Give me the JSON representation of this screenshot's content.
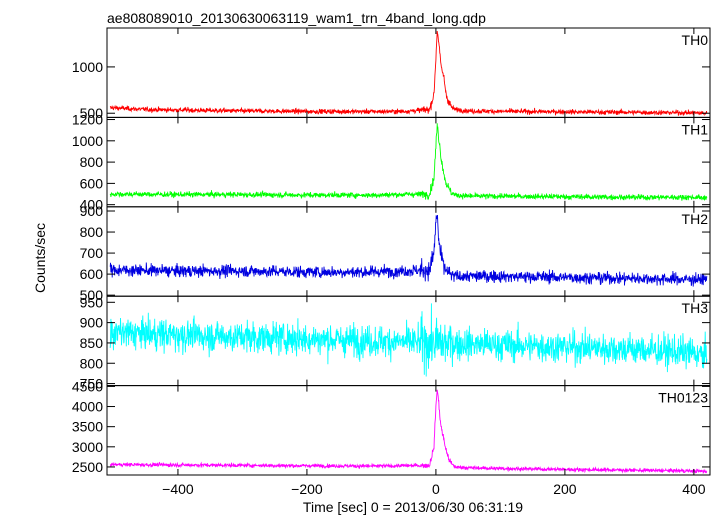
{
  "chart_data": {
    "type": "line",
    "title": "ae808089010_20130630063119_wam1_trn_4band_long.qdp",
    "xlabel": "Time [sec] 0 = 2013/06/30 06:31:19",
    "ylabel": "Counts/sec",
    "xlim": [
      -510,
      425
    ],
    "x_ticks": [
      -400,
      -200,
      0,
      200,
      400
    ],
    "x_tick_labels": [
      "−400",
      "−200",
      "0",
      "200",
      "400"
    ],
    "panels": [
      {
        "name": "TH0",
        "color": "#ff0000",
        "ylim": [
          455,
          1420
        ],
        "y_ticks": [
          500,
          1000
        ],
        "y_tick_labels": [
          "500",
          "1000"
        ],
        "series": [
          {
            "x": [
              -505,
              -450,
              -400,
              -300,
              -200,
              -100,
              -50,
              -10,
              -3,
              0,
              2,
              4,
              6,
              8,
              12,
              16,
              20,
              25,
              30,
              50,
              100,
              200,
              300,
              400,
              420
            ],
            "y": [
              560,
              540,
              535,
              525,
              520,
              518,
              520,
              540,
              700,
              1100,
              1400,
              1300,
              1150,
              1000,
              900,
              700,
              620,
              560,
              540,
              525,
              520,
              515,
              510,
              505,
              500
            ],
            "noise": 25
          }
        ]
      },
      {
        "name": "TH1",
        "color": "#00ff00",
        "ylim": [
          380,
          1220
        ],
        "y_ticks": [
          400,
          600,
          800,
          1000,
          1200
        ],
        "y_tick_labels": [
          "400",
          "600",
          "800",
          "1000",
          "1200"
        ],
        "series": [
          {
            "x": [
              -505,
              -400,
              -300,
              -200,
              -100,
              -10,
              -3,
              0,
              2,
              4,
              6,
              8,
              12,
              16,
              20,
              25,
              30,
              50,
              100,
              200,
              300,
              400,
              420
            ],
            "y": [
              500,
              495,
              495,
              490,
              490,
              500,
              650,
              950,
              1150,
              1050,
              950,
              850,
              700,
              600,
              550,
              510,
              490,
              480,
              480,
              475,
              470,
              470,
              465
            ],
            "noise": 25
          }
        ]
      },
      {
        "name": "TH2",
        "color": "#0000e0",
        "ylim": [
          495,
          920
        ],
        "y_ticks": [
          500,
          600,
          700,
          800,
          900
        ],
        "y_tick_labels": [
          "500",
          "600",
          "700",
          "800",
          "900"
        ],
        "series": [
          {
            "x": [
              -505,
              -400,
              -300,
              -200,
              -100,
              -10,
              -3,
              0,
              2,
              4,
              6,
              8,
              12,
              16,
              20,
              30,
              50,
              100,
              200,
              300,
              400,
              420
            ],
            "y": [
              620,
              615,
              615,
              610,
              610,
              620,
              700,
              850,
              880,
              780,
              720,
              680,
              640,
              620,
              600,
              590,
              590,
              590,
              585,
              580,
              575,
              575
            ],
            "noise": 28
          }
        ]
      },
      {
        "name": "TH3",
        "color": "#00ffff",
        "ylim": [
          745,
          965
        ],
        "y_ticks": [
          750,
          800,
          850,
          900,
          950
        ],
        "y_tick_labels": [
          "750",
          "800",
          "850",
          "900",
          "950"
        ],
        "series": [
          {
            "x": [
              -505,
              -400,
              -300,
              -200,
              -100,
              0,
              100,
              200,
              300,
              400,
              420
            ],
            "y": [
              875,
              870,
              865,
              860,
              855,
              850,
              845,
              840,
              835,
              825,
              815
            ],
            "noise": 38
          }
        ]
      },
      {
        "name": "TH0123",
        "color": "#ff00ff",
        "ylim": [
          2300,
          4520
        ],
        "y_ticks": [
          2500,
          3000,
          3500,
          4000,
          4500
        ],
        "y_tick_labels": [
          "2500",
          "3000",
          "3500",
          "4000",
          "4500"
        ],
        "series": [
          {
            "x": [
              -505,
              -400,
              -300,
              -200,
              -100,
              -10,
              -3,
              0,
              2,
              4,
              6,
              8,
              12,
              16,
              20,
              25,
              30,
              50,
              100,
              200,
              300,
              400,
              420
            ],
            "y": [
              2560,
              2550,
              2540,
              2530,
              2520,
              2540,
              3000,
              4000,
              4450,
              4150,
              3800,
              3500,
              3200,
              2900,
              2700,
              2560,
              2500,
              2480,
              2460,
              2440,
              2420,
              2400,
              2390
            ],
            "noise": 45
          }
        ]
      }
    ]
  }
}
